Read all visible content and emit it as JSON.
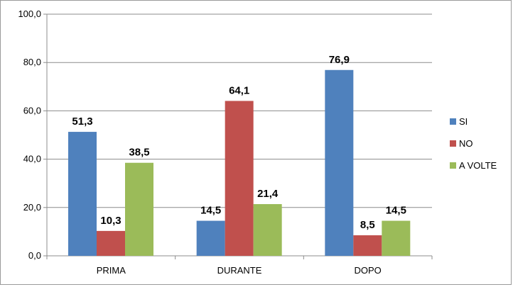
{
  "chart_data": {
    "type": "bar",
    "categories": [
      "PRIMA",
      "DURANTE",
      "DOPO"
    ],
    "series": [
      {
        "name": "SI",
        "values": [
          51.3,
          14.5,
          76.9
        ],
        "labels": [
          "51,3",
          "14,5",
          "76,9"
        ],
        "color": "#4F81BD"
      },
      {
        "name": "NO",
        "values": [
          10.3,
          64.1,
          8.5
        ],
        "labels": [
          "10,3",
          "64,1",
          "8,5"
        ],
        "color": "#C0504D"
      },
      {
        "name": "A VOLTE",
        "values": [
          38.5,
          21.4,
          14.5
        ],
        "labels": [
          "38,5",
          "21,4",
          "14,5"
        ],
        "color": "#9BBB59"
      }
    ],
    "y_ticks": [
      0,
      20,
      40,
      60,
      80,
      100
    ],
    "y_tick_labels": [
      "0,0",
      "20,0",
      "40,0",
      "60,0",
      "80,0",
      "100,0"
    ],
    "ylim": [
      0,
      100
    ],
    "grid": true,
    "legend_position": "right"
  }
}
